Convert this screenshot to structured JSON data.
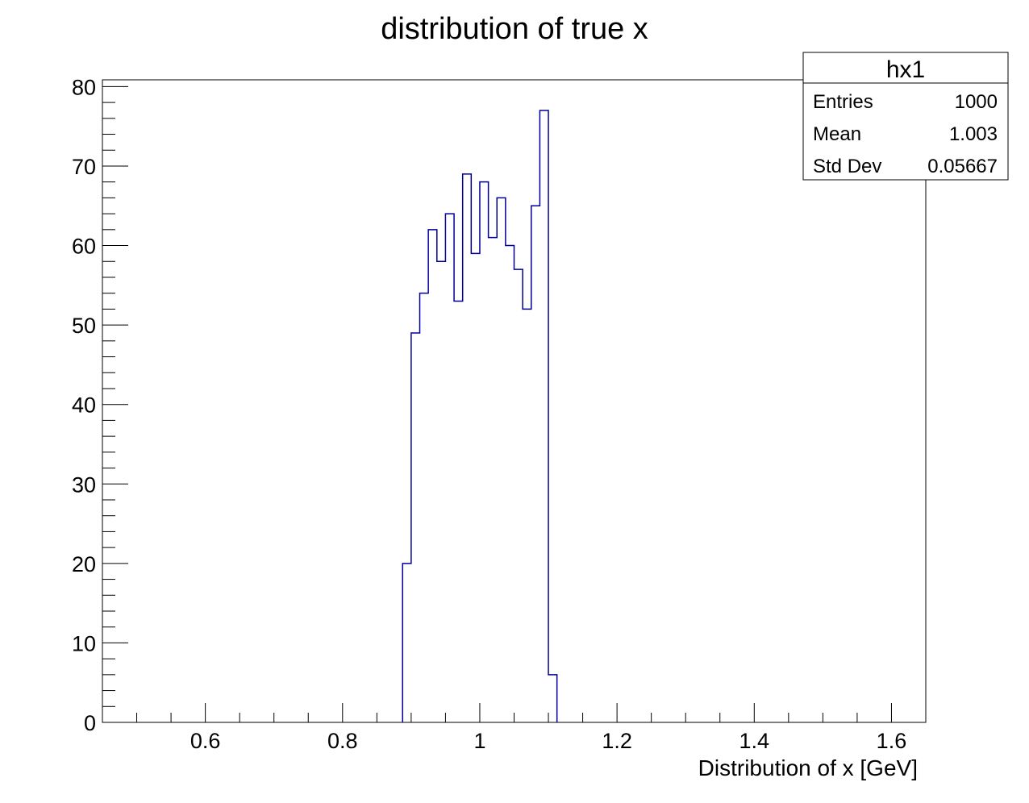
{
  "chart_data": {
    "type": "histogram",
    "title": "distribution of true x",
    "xlabel": "Distribution of x [GeV]",
    "ylabel": "",
    "xlim": [
      0.45,
      1.65
    ],
    "ylim": [
      0,
      80.85
    ],
    "bin_width": 0.0125,
    "x_ticks": [
      0.6,
      0.8,
      1,
      1.2,
      1.4,
      1.6
    ],
    "x_tick_labels": [
      "0.6",
      "0.8",
      "1",
      "1.2",
      "1.4",
      "1.6"
    ],
    "y_ticks": [
      0,
      10,
      20,
      30,
      40,
      50,
      60,
      70,
      80
    ],
    "y_tick_labels": [
      "0",
      "10",
      "20",
      "30",
      "40",
      "50",
      "60",
      "70",
      "80"
    ],
    "line_color": "#000099",
    "bins": [
      {
        "x_low": 0.8875,
        "count": 20
      },
      {
        "x_low": 0.9,
        "count": 49
      },
      {
        "x_low": 0.9125,
        "count": 54
      },
      {
        "x_low": 0.925,
        "count": 62
      },
      {
        "x_low": 0.9375,
        "count": 58
      },
      {
        "x_low": 0.95,
        "count": 64
      },
      {
        "x_low": 0.9625,
        "count": 53
      },
      {
        "x_low": 0.975,
        "count": 69
      },
      {
        "x_low": 0.9875,
        "count": 59
      },
      {
        "x_low": 1.0,
        "count": 68
      },
      {
        "x_low": 1.0125,
        "count": 61
      },
      {
        "x_low": 1.025,
        "count": 66
      },
      {
        "x_low": 1.0375,
        "count": 60
      },
      {
        "x_low": 1.05,
        "count": 57
      },
      {
        "x_low": 1.0625,
        "count": 52
      },
      {
        "x_low": 1.075,
        "count": 65
      },
      {
        "x_low": 1.0875,
        "count": 77
      },
      {
        "x_low": 1.1,
        "count": 6
      }
    ],
    "stats_box": {
      "name": "hx1",
      "rows": [
        {
          "label": "Entries",
          "value": "1000"
        },
        {
          "label": "Mean",
          "value": "1.003"
        },
        {
          "label": "Std Dev",
          "value": "0.05667"
        }
      ]
    }
  }
}
